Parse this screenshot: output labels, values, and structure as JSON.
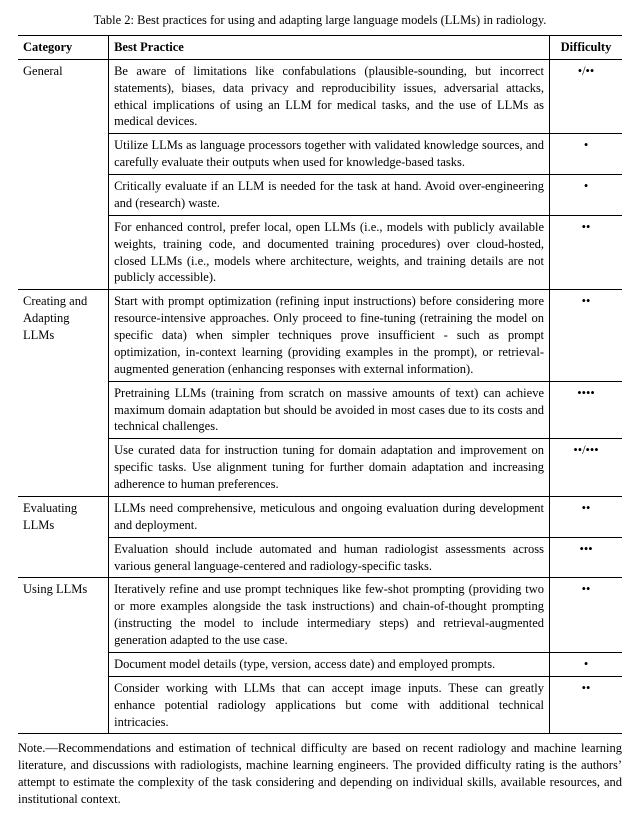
{
  "caption": "Table 2: Best practices for using and adapting large language models (LLMs) in radiology.",
  "headers": {
    "category": "Category",
    "practice": "Best Practice",
    "difficulty": "Difficulty"
  },
  "groups": [
    {
      "category": "General",
      "rows": [
        {
          "practice": "Be aware of limitations like confabulations (plausible-sounding, but incorrect statements), biases, data privacy and reproducibility issues, adversarial attacks, ethical implications of using an LLM for medical tasks, and the use of LLMs as medical devices.",
          "difficulty": "•/••"
        },
        {
          "practice": "Utilize LLMs as language processors together with validated knowledge sources, and carefully evaluate their outputs when used for knowledge-based tasks.",
          "difficulty": "•"
        },
        {
          "practice": "Critically evaluate if an LLM is needed for the task at hand.  Avoid over-engineering and (research) waste.",
          "difficulty": "•"
        },
        {
          "practice": "For enhanced control, prefer local, open LLMs (i.e., models with publicly available weights, training code, and documented training procedures) over cloud-hosted, closed LLMs (i.e., models where architecture, weights, and training details are not publicly accessible).",
          "difficulty": "••"
        }
      ]
    },
    {
      "category": "Creating and Adapting LLMs",
      "rows": [
        {
          "practice": "Start with prompt optimization (refining input instructions) before considering more resource-intensive approaches. Only proceed to fine-tuning (retraining the model on specific data) when simpler techniques prove insufficient - such as prompt optimization, in-context learning (providing examples in the prompt), or retrieval-augmented generation (enhancing responses with external information).",
          "difficulty": "••"
        },
        {
          "practice": "Pretraining LLMs (training from scratch on massive amounts of text) can achieve maximum domain adaptation but should be avoided in most cases due to its costs and technical challenges.",
          "difficulty": "••••"
        },
        {
          "practice": "Use curated data for instruction tuning for domain adaptation and improvement on specific tasks. Use alignment tuning for further domain adaptation and increasing adherence to human preferences.",
          "difficulty": "••/•••"
        }
      ]
    },
    {
      "category": "Evaluating LLMs",
      "rows": [
        {
          "practice": "LLMs need comprehensive, meticulous and ongoing evaluation during development and deployment.",
          "difficulty": "••"
        },
        {
          "practice": "Evaluation should include automated and human radiologist assessments across various general language-centered and radiology-specific tasks.",
          "difficulty": "•••"
        }
      ]
    },
    {
      "category": "Using LLMs",
      "rows": [
        {
          "practice": "Iteratively refine and use prompt techniques like few-shot prompting (providing two or more examples alongside the task instructions) and chain-of-thought prompting (instructing the model to include intermediary steps) and retrieval-augmented generation adapted to the use case.",
          "difficulty": "••"
        },
        {
          "practice": "Document model details (type, version, access date) and employed prompts.",
          "difficulty": "•"
        },
        {
          "practice": "Consider working with LLMs that can accept image inputs. These can greatly enhance potential radiology applications but come with additional technical intricacies.",
          "difficulty": "••"
        }
      ]
    }
  ],
  "note": "Note.—Recommendations and estimation of technical difficulty are based on recent radiology and machine learning literature, and discussions with radiologists, machine learning engineers. The provided difficulty rating is the authors’ attempt to estimate the complexity of the task considering and depending on individual skills, available resources, and institutional context."
}
